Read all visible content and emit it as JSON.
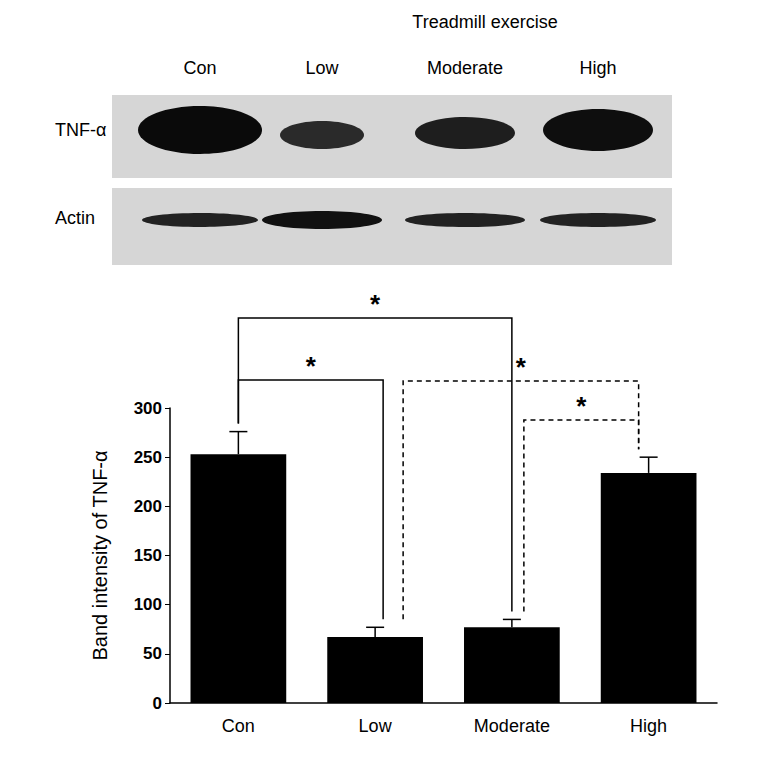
{
  "chart_data": {
    "type": "bar",
    "blot": {
      "title": "Treadmill exercise",
      "lanes": [
        "Con",
        "Low",
        "Moderate",
        "High"
      ],
      "rows": [
        "TNF-α",
        "Actin"
      ]
    },
    "categories": [
      "Con",
      "Low",
      "Moderate",
      "High"
    ],
    "values": [
      253,
      67,
      77,
      234
    ],
    "errors": [
      23,
      10,
      8,
      16
    ],
    "color": "#000000",
    "ylabel": "Band intensity of TNF-α",
    "ylim": [
      0,
      300
    ],
    "yticks": [
      0,
      50,
      100,
      150,
      200,
      250,
      300
    ],
    "grid": false,
    "significance": [
      {
        "from": "Con",
        "to": "Moderate",
        "label": "*",
        "line_style": "solid"
      },
      {
        "from": "Con",
        "to": "Low",
        "label": "*",
        "line_style": "solid"
      },
      {
        "from": "Low",
        "to": "High",
        "label": "*",
        "line_style": "dashed"
      },
      {
        "from": "Moderate",
        "to": "High",
        "label": "*",
        "line_style": "dashed"
      }
    ]
  }
}
